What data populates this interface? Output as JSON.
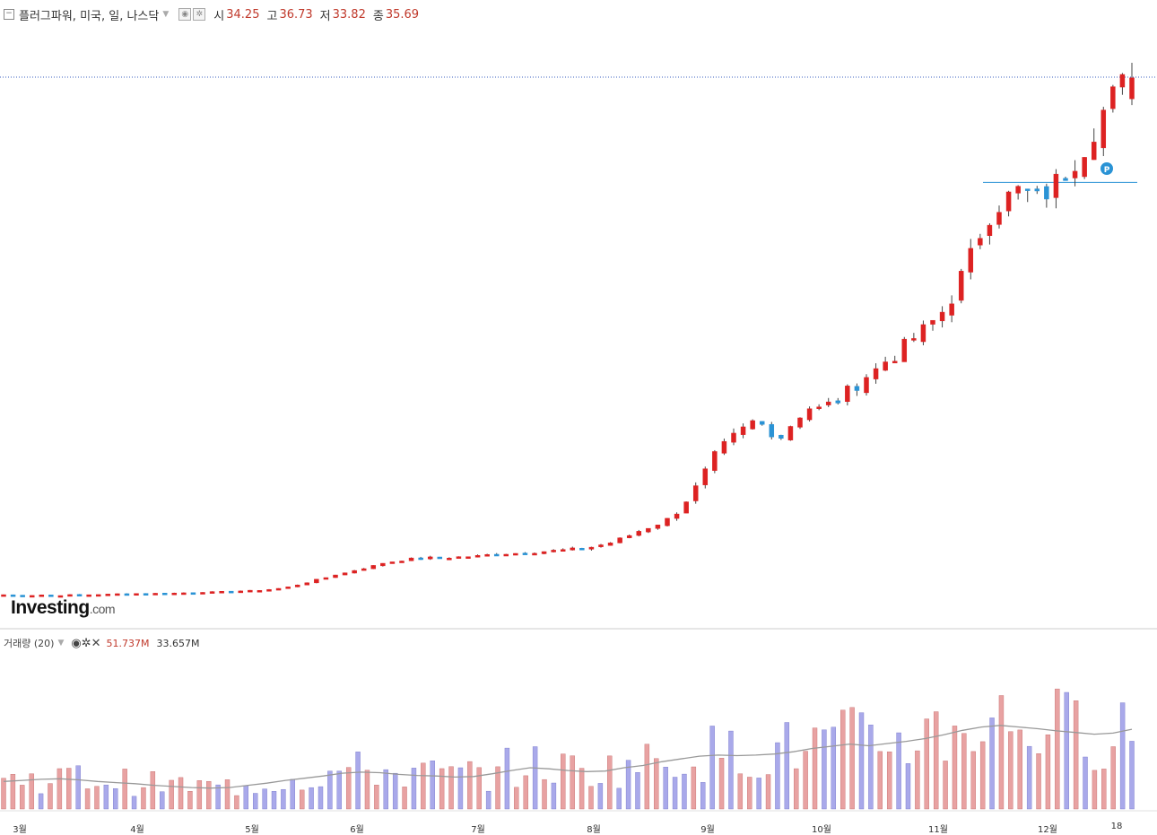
{
  "header": {
    "symbol_label": "플러그파워, 미국, 일, 나스닥",
    "open_label": "시",
    "open_value": "34.25",
    "high_label": "고",
    "high_value": "36.73",
    "low_label": "저",
    "low_value": "33.82",
    "close_label": "종",
    "close_value": "35.69"
  },
  "volume_panel": {
    "title": "거래량 (20)",
    "value1": "51.737M",
    "value2": "33.657M"
  },
  "watermark": {
    "brand": "Investing",
    "suffix": ".com"
  },
  "colors": {
    "up": "#dd2222",
    "down": "#2a93d5",
    "vol_up": "#e8a2a2",
    "vol_down": "#a9a9ea",
    "ma": "#999999"
  },
  "chart_data": {
    "type": "candlestick",
    "x_tick_labels": [
      "3월",
      "4월",
      "5월",
      "6월",
      "7월",
      "8월",
      "9월",
      "10월",
      "11월",
      "12월",
      "18"
    ],
    "price_path": [
      0.12,
      0.09,
      0.05,
      0.08,
      0.11,
      0.06,
      0.08,
      0.11,
      0.09,
      0.12,
      0.14,
      0.15,
      0.18,
      0.19,
      0.2,
      0.21,
      0.21,
      0.22,
      0.23,
      0.25,
      0.27,
      0.3,
      0.31,
      0.33,
      0.35,
      0.38,
      0.4,
      0.43,
      0.48,
      0.55,
      0.65,
      0.8,
      0.96,
      1.15,
      1.3,
      1.5,
      1.62,
      1.8,
      1.95,
      2.1,
      2.3,
      2.4,
      2.5,
      2.58,
      2.63,
      2.66,
      2.65,
      2.68,
      2.72,
      2.75,
      2.78,
      2.86,
      2.92,
      2.95,
      2.97,
      3.0,
      3.05,
      3.1,
      3.15,
      3.2,
      3.25,
      3.3,
      3.4,
      3.55,
      3.7,
      3.95,
      4.2,
      4.5,
      4.75,
      5.0,
      5.3,
      5.8,
      6.6,
      7.5,
      8.6,
      9.7,
      10.4,
      11.0,
      11.5,
      12.0,
      11.8,
      11.3,
      11.0,
      11.8,
      12.5,
      13.0,
      12.9,
      13.2,
      13.5,
      14.1,
      14.6,
      15.2,
      15.6,
      16.2,
      16.6,
      17.2,
      17.8,
      18.3,
      18.9,
      19.6,
      20.6,
      22.0,
      23.4,
      25.0,
      26.3,
      27.0,
      27.5,
      27.9,
      27.7,
      27.3,
      27.8,
      28.5,
      29.2,
      30.1,
      31.0,
      32.2,
      33.4,
      34.4,
      35.2,
      35.69
    ],
    "volume_ma": [
      5.0,
      5.2,
      5.4,
      5.5,
      5.3,
      5.0,
      4.8,
      4.6,
      4.3,
      4.1,
      3.9,
      3.8,
      3.9,
      4.3,
      4.7,
      5.2,
      5.6,
      6.0,
      6.5,
      6.7,
      6.6,
      6.3,
      6.1,
      6.0,
      5.8,
      5.9,
      6.4,
      7.0,
      7.5,
      7.3,
      7.0,
      6.8,
      6.9,
      7.5,
      7.9,
      8.6,
      9.1,
      9.6,
      9.8,
      9.7,
      9.8,
      10.0,
      10.4,
      11.0,
      11.4,
      11.8,
      11.5,
      11.9,
      12.3,
      12.8,
      13.5,
      14.3,
      14.9,
      15.2,
      14.9,
      14.6,
      14.2,
      13.9,
      13.6,
      13.8,
      14.5
    ],
    "price_range": [
      0,
      36.73
    ],
    "horizontal_levels": [
      36.73,
      28.5
    ],
    "volume_units": "M"
  }
}
